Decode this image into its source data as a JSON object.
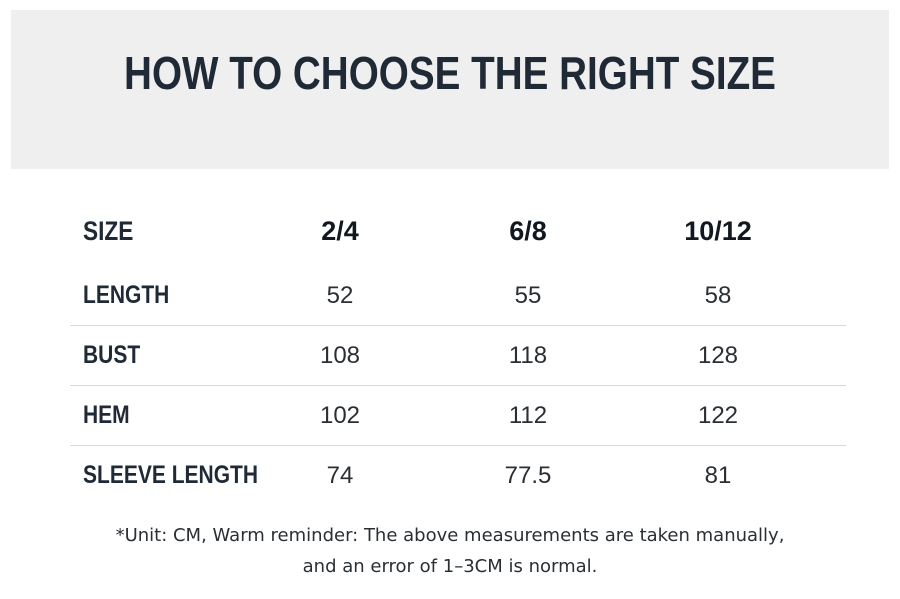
{
  "title": "HOW TO CHOOSE THE RIGHT SIZE",
  "table": {
    "header": {
      "label": "SIZE",
      "sizes": [
        "2/4",
        "6/8",
        "10/12"
      ]
    },
    "rows": [
      {
        "label": "LENGTH",
        "values": [
          "52",
          "55",
          "58"
        ]
      },
      {
        "label": "BUST",
        "values": [
          "108",
          "118",
          "128"
        ]
      },
      {
        "label": "HEM",
        "values": [
          "102",
          "112",
          "122"
        ]
      },
      {
        "label": "SLEEVE LENGTH",
        "values": [
          "74",
          "77.5",
          "81"
        ]
      }
    ]
  },
  "note": {
    "line1": "*Unit: CM, Warm reminder: The above measurements are taken manually,",
    "line2": "and an error of 1–3CM is normal."
  },
  "colors": {
    "banner_bg": "#efefef",
    "title_text": "#1f2a36",
    "divider": "#d7d9dc"
  }
}
